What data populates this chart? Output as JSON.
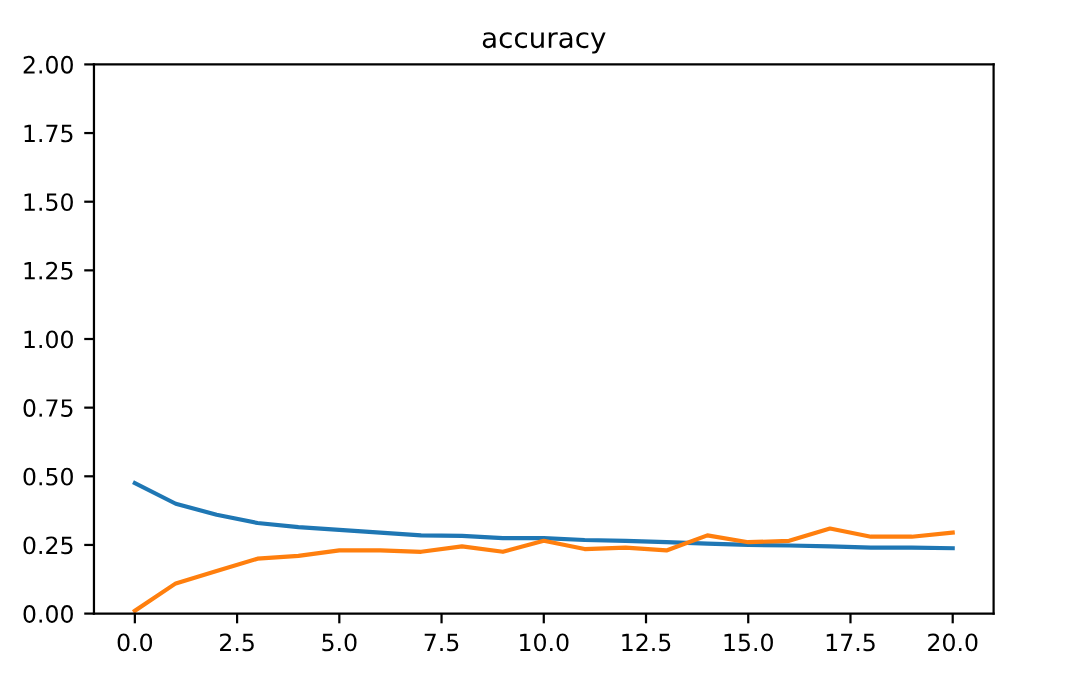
{
  "chart_data": {
    "type": "line",
    "title": "accuracy",
    "x": [
      0,
      1,
      2,
      3,
      4,
      5,
      6,
      7,
      8,
      9,
      10,
      11,
      12,
      13,
      14,
      15,
      16,
      17,
      18,
      19,
      20
    ],
    "series": [
      {
        "color": "#1f77b4",
        "values": [
          0.475,
          0.4,
          0.36,
          0.33,
          0.315,
          0.305,
          0.295,
          0.285,
          0.283,
          0.275,
          0.275,
          0.268,
          0.265,
          0.26,
          0.255,
          0.25,
          0.248,
          0.245,
          0.24,
          0.24,
          0.238
        ]
      },
      {
        "color": "#ff7f0e",
        "values": [
          0.01,
          0.11,
          0.155,
          0.2,
          0.21,
          0.23,
          0.23,
          0.225,
          0.245,
          0.225,
          0.265,
          0.235,
          0.24,
          0.23,
          0.285,
          0.26,
          0.265,
          0.31,
          0.28,
          0.28,
          0.295
        ]
      }
    ],
    "xlim": [
      -1,
      21
    ],
    "xticks": [
      {
        "value": 0,
        "label": "0.0"
      },
      {
        "value": 2.5,
        "label": "2.5"
      },
      {
        "value": 5,
        "label": "5.0"
      },
      {
        "value": 7.5,
        "label": "7.5"
      },
      {
        "value": 10,
        "label": "10.0"
      },
      {
        "value": 12.5,
        "label": "12.5"
      },
      {
        "value": 15,
        "label": "15.0"
      },
      {
        "value": 17.5,
        "label": "17.5"
      },
      {
        "value": 20,
        "label": "20.0"
      }
    ],
    "ylim": [
      0,
      2
    ],
    "yticks": [
      {
        "value": 0,
        "label": "0.00"
      },
      {
        "value": 0.25,
        "label": "0.25"
      },
      {
        "value": 0.5,
        "label": "0.50"
      },
      {
        "value": 0.75,
        "label": "0.75"
      },
      {
        "value": 1,
        "label": "1.00"
      },
      {
        "value": 1.25,
        "label": "1.25"
      },
      {
        "value": 1.5,
        "label": "1.50"
      },
      {
        "value": 1.75,
        "label": "1.75"
      },
      {
        "value": 2,
        "label": "2.00"
      }
    ],
    "grid": false,
    "legend": false
  }
}
